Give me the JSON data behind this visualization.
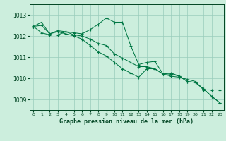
{
  "title": "Graphe pression niveau de la mer (hPa)",
  "background_color": "#cceedd",
  "plot_bg_color": "#cceedd",
  "grid_color": "#99ccbb",
  "line_color": "#007744",
  "text_color": "#004422",
  "xlim": [
    -0.5,
    23.5
  ],
  "ylim": [
    1008.5,
    1013.5
  ],
  "yticks": [
    1009,
    1010,
    1011,
    1012,
    1013
  ],
  "xticks": [
    0,
    1,
    2,
    3,
    4,
    5,
    6,
    7,
    8,
    9,
    10,
    11,
    12,
    13,
    14,
    15,
    16,
    17,
    18,
    19,
    20,
    21,
    22,
    23
  ],
  "series1_x": [
    0,
    1,
    2,
    3,
    4,
    5,
    6,
    7,
    8,
    9,
    10,
    11,
    12,
    13,
    14,
    15,
    16,
    17,
    18,
    19,
    20,
    21,
    22,
    23
  ],
  "series1_y": [
    1012.45,
    1012.65,
    1012.1,
    1012.25,
    1012.2,
    1012.15,
    1012.1,
    1012.3,
    1012.55,
    1012.85,
    1012.65,
    1012.65,
    1011.55,
    1010.65,
    1010.75,
    1010.8,
    1010.2,
    1010.25,
    1010.1,
    1009.85,
    1009.8,
    1009.5,
    1009.15,
    1008.85
  ],
  "series2_x": [
    0,
    1,
    2,
    3,
    4,
    5,
    6,
    7,
    8,
    9,
    10,
    11,
    12,
    13,
    14,
    15,
    16,
    17,
    18,
    19,
    20,
    21,
    22,
    23
  ],
  "series2_y": [
    1012.45,
    1012.15,
    1012.05,
    1012.05,
    1012.2,
    1012.05,
    1012.0,
    1011.85,
    1011.65,
    1011.55,
    1011.15,
    1010.95,
    1010.75,
    1010.55,
    1010.55,
    1010.45,
    1010.2,
    1010.2,
    1010.1,
    1009.85,
    1009.8,
    1009.5,
    1009.15,
    1008.85
  ],
  "series3_x": [
    0,
    1,
    2,
    3,
    4,
    5,
    6,
    7,
    8,
    9,
    10,
    11,
    12,
    13,
    14,
    15,
    16,
    17,
    18,
    19,
    20,
    21,
    22,
    23
  ],
  "series3_y": [
    1012.45,
    1012.5,
    1012.1,
    1012.2,
    1012.1,
    1012.0,
    1011.85,
    1011.55,
    1011.25,
    1011.05,
    1010.75,
    1010.45,
    1010.25,
    1010.05,
    1010.45,
    1010.45,
    1010.2,
    1010.1,
    1010.05,
    1009.95,
    1009.85,
    1009.45,
    1009.45,
    1009.45
  ]
}
